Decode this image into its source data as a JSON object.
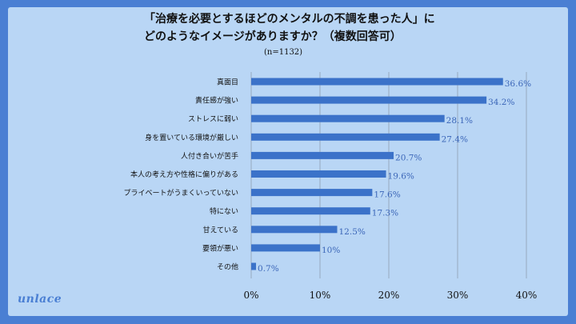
{
  "chart_data": {
    "type": "bar",
    "orientation": "horizontal",
    "title_lines": [
      "「治療を必要とするほどのメンタルの不調を患った人」に",
      "どのようなイメージがありますか？（複数回答可）"
    ],
    "note": "(n=1132)",
    "categories": [
      "真面目",
      "責任感が強い",
      "ストレスに弱い",
      "身を置いている環境が厳しい",
      "人付き合いが苦手",
      "本人の考え方や性格に偏りがある",
      "プライベートがうまくいっていない",
      "特にない",
      "甘えている",
      "要領が悪い",
      "その他"
    ],
    "values": [
      36.6,
      34.2,
      28.1,
      27.4,
      20.7,
      19.6,
      17.6,
      17.3,
      12.5,
      10,
      0.7
    ],
    "value_labels": [
      "36.6%",
      "34.2%",
      "28.1%",
      "27.4%",
      "20.7%",
      "19.6%",
      "17.6%",
      "17.3%",
      "12.5%",
      "10%",
      "0.7%"
    ],
    "xlim": [
      0,
      40
    ],
    "ticks": [
      0,
      10,
      20,
      30,
      40
    ],
    "tick_labels": [
      "0%",
      "10%",
      "20%",
      "30%",
      "40%"
    ],
    "grid": true,
    "bar_color": "#3b72c9",
    "label_color": "#3b66b8"
  },
  "brand": {
    "logo_text": "unlace"
  }
}
